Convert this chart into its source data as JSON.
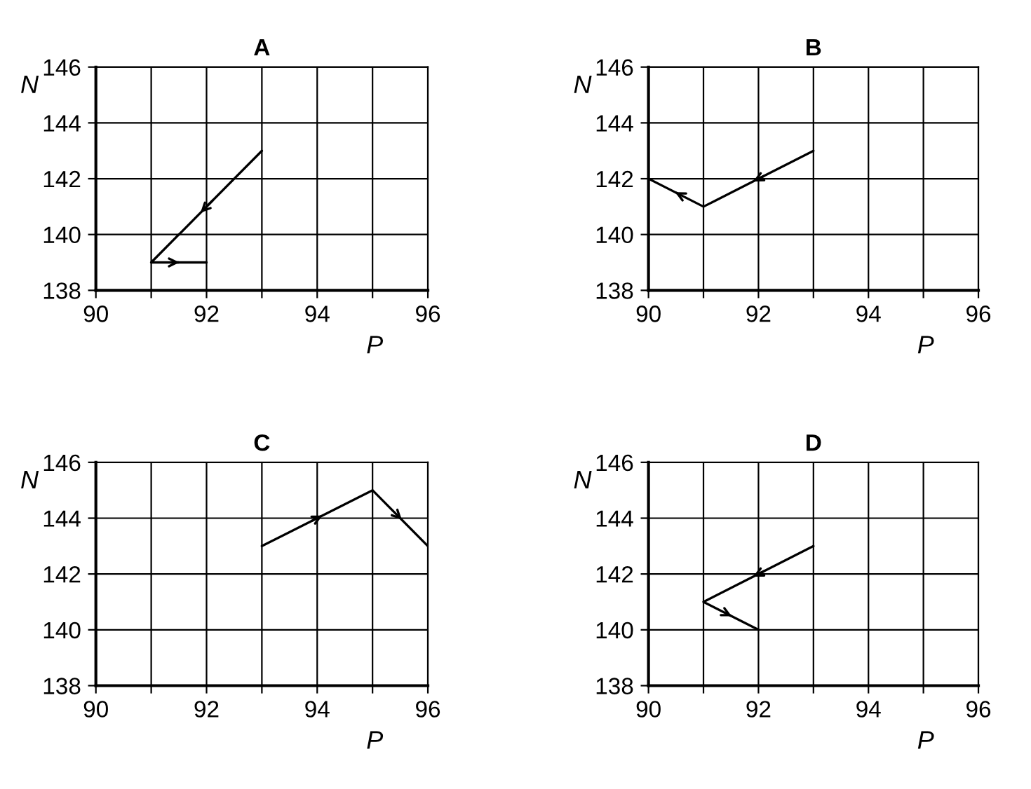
{
  "chart_data": [
    {
      "type": "line",
      "title": "A",
      "xlabel": "P",
      "ylabel": "N",
      "xlim": [
        90,
        96
      ],
      "ylim": [
        138,
        146
      ],
      "xticks": [
        90,
        {
          "value": 91,
          "label": null
        },
        92,
        {
          "value": 93,
          "label": null
        },
        94,
        {
          "value": 95,
          "label": null
        },
        96
      ],
      "yticks": [
        138,
        140,
        142,
        144,
        146
      ],
      "grid": true,
      "series": [
        {
          "color": "#000000",
          "x": [
            93,
            91,
            92
          ],
          "values": [
            143,
            139,
            139
          ]
        }
      ]
    },
    {
      "type": "line",
      "title": "B",
      "xlabel": "P",
      "ylabel": "N",
      "xlim": [
        90,
        96
      ],
      "ylim": [
        138,
        146
      ],
      "xticks": [
        90,
        {
          "value": 91,
          "label": null
        },
        92,
        {
          "value": 93,
          "label": null
        },
        94,
        {
          "value": 95,
          "label": null
        },
        96
      ],
      "yticks": [
        138,
        140,
        142,
        144,
        146
      ],
      "grid": true,
      "series": [
        {
          "color": "#000000",
          "x": [
            93,
            91,
            90
          ],
          "values": [
            143,
            141,
            142
          ]
        }
      ]
    },
    {
      "type": "line",
      "title": "C",
      "xlabel": "P",
      "ylabel": "N",
      "xlim": [
        90,
        96
      ],
      "ylim": [
        138,
        146
      ],
      "xticks": [
        90,
        {
          "value": 91,
          "label": null
        },
        92,
        {
          "value": 93,
          "label": null
        },
        94,
        {
          "value": 95,
          "label": null
        },
        96
      ],
      "yticks": [
        138,
        140,
        142,
        144,
        146
      ],
      "grid": true,
      "series": [
        {
          "color": "#000000",
          "x": [
            93,
            95,
            96
          ],
          "values": [
            143,
            145,
            143
          ]
        }
      ]
    },
    {
      "type": "line",
      "title": "D",
      "xlabel": "P",
      "ylabel": "N",
      "xlim": [
        90,
        96
      ],
      "ylim": [
        138,
        146
      ],
      "xticks": [
        90,
        {
          "value": 91,
          "label": null
        },
        92,
        {
          "value": 93,
          "label": null
        },
        94,
        {
          "value": 95,
          "label": null
        },
        96
      ],
      "yticks": [
        138,
        140,
        142,
        144,
        146
      ],
      "grid": true,
      "series": [
        {
          "color": "#000000",
          "x": [
            93,
            91,
            92
          ],
          "values": [
            143,
            141,
            140
          ]
        }
      ]
    }
  ]
}
